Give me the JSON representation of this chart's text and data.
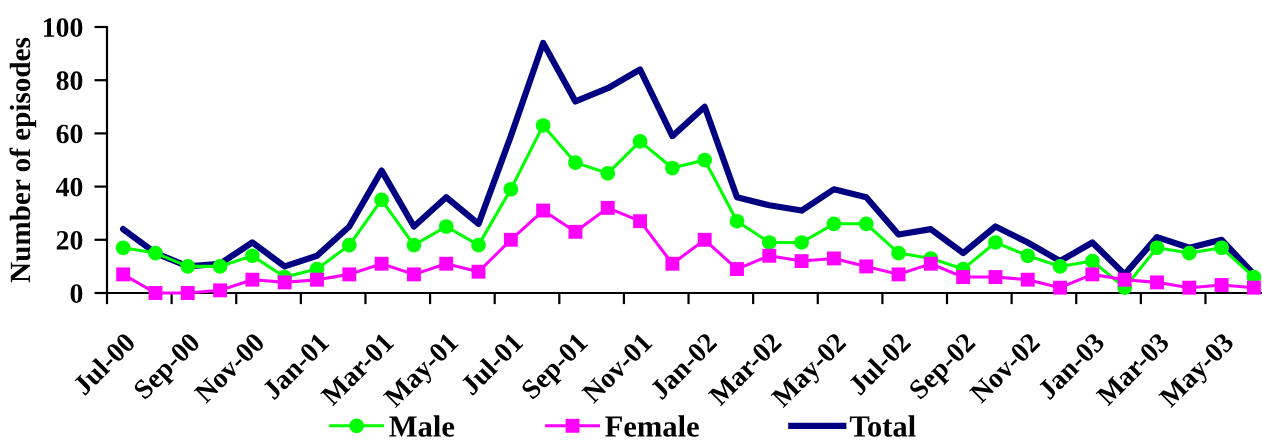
{
  "chart_data": {
    "type": "line",
    "ylabel": "Number of episodes",
    "categories": [
      "Jul-00",
      null,
      "Sep-00",
      null,
      "Nov-00",
      null,
      "Jan-01",
      null,
      "Mar-01",
      null,
      "May-01",
      null,
      "Jul-01",
      null,
      "Sep-01",
      null,
      "Nov-01",
      null,
      "Jan-02",
      null,
      "Mar-02",
      null,
      "May-02",
      null,
      "Jul-02",
      null,
      "Sep-02",
      null,
      "Nov-02",
      null,
      "Jan-03",
      null,
      "Mar-03",
      null,
      "May-03",
      null
    ],
    "series": [
      {
        "name": "Male",
        "color": "#00ff00",
        "marker": "circle",
        "values": [
          17,
          15,
          10,
          10,
          14,
          6,
          9,
          18,
          35,
          18,
          25,
          18,
          39,
          63,
          49,
          45,
          57,
          47,
          50,
          27,
          19,
          19,
          26,
          26,
          15,
          13,
          9,
          19,
          14,
          10,
          12,
          2,
          17,
          15,
          17,
          6
        ]
      },
      {
        "name": "Female",
        "color": "#ff00ff",
        "marker": "square",
        "values": [
          7,
          0,
          0,
          1,
          5,
          4,
          5,
          7,
          11,
          7,
          11,
          8,
          20,
          31,
          23,
          32,
          27,
          11,
          20,
          9,
          14,
          12,
          13,
          10,
          7,
          11,
          6,
          6,
          5,
          2,
          7,
          5,
          4,
          2,
          3,
          2
        ]
      },
      {
        "name": "Total",
        "color": "#000080",
        "marker": "none",
        "values": [
          24,
          15,
          10,
          11,
          19,
          10,
          14,
          25,
          46,
          25,
          36,
          26,
          59,
          94,
          72,
          77,
          84,
          59,
          70,
          36,
          33,
          31,
          39,
          36,
          22,
          24,
          15,
          25,
          19,
          12,
          19,
          7,
          21,
          17,
          20,
          7
        ]
      }
    ],
    "ylim": [
      0,
      100
    ],
    "yticks": [
      0,
      20,
      40,
      60,
      80,
      100
    ],
    "legend": "bottom",
    "line_style": "solid"
  }
}
